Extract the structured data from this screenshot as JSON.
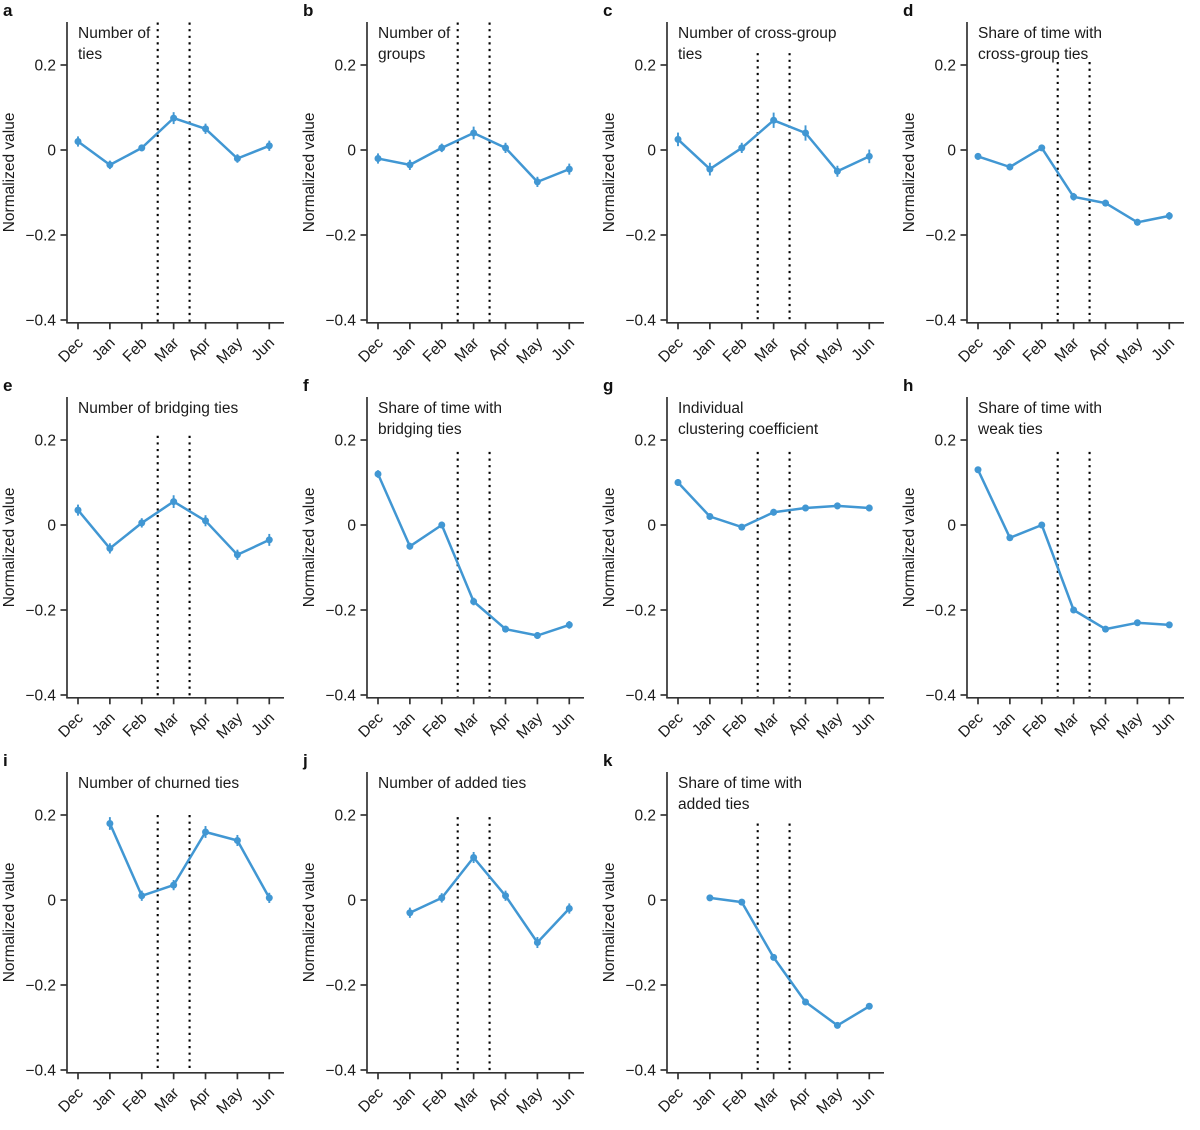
{
  "figure": {
    "ylabel": "Normalized value",
    "categories": [
      "Dec",
      "Jan",
      "Feb",
      "Mar",
      "Apr",
      "May",
      "Jun"
    ],
    "ytick_labels": [
      "0.2",
      "0",
      "−0.2",
      "−0.4"
    ],
    "yticks": [
      0.2,
      0,
      -0.2,
      -0.4
    ],
    "ylim": [
      -0.4,
      0.3
    ],
    "line_color": "#4197d3",
    "axis_color": "#333333",
    "vline_color": "#000000",
    "text_color": "#1a1a1a"
  },
  "chart_data": [
    {
      "type": "line",
      "letter": "a",
      "title": "Number of\nties",
      "categories": [
        "Dec",
        "Jan",
        "Feb",
        "Mar",
        "Apr",
        "May",
        "Jun"
      ],
      "values": [
        0.02,
        -0.035,
        0.005,
        0.075,
        0.05,
        -0.02,
        0.01
      ],
      "errors": [
        0.012,
        0.01,
        0.008,
        0.014,
        0.012,
        0.01,
        0.012
      ],
      "xlabel": "",
      "ylabel": "Normalized value",
      "ylim": [
        -0.4,
        0.3
      ],
      "vlines_x": [
        2.5,
        3.5
      ],
      "vline_top": 0.3
    },
    {
      "type": "line",
      "letter": "b",
      "title": "Number of\ngroups",
      "categories": [
        "Dec",
        "Jan",
        "Feb",
        "Mar",
        "Apr",
        "May",
        "Jun"
      ],
      "values": [
        -0.02,
        -0.035,
        0.005,
        0.04,
        0.005,
        -0.075,
        -0.045
      ],
      "errors": [
        0.012,
        0.012,
        0.01,
        0.015,
        0.012,
        0.012,
        0.013
      ],
      "xlabel": "",
      "ylabel": "Normalized value",
      "ylim": [
        -0.4,
        0.3
      ],
      "vlines_x": [
        2.5,
        3.5
      ],
      "vline_top": 0.3
    },
    {
      "type": "line",
      "letter": "c",
      "title": "Number of cross-group\nties",
      "categories": [
        "Dec",
        "Jan",
        "Feb",
        "Mar",
        "Apr",
        "May",
        "Jun"
      ],
      "values": [
        0.025,
        -0.045,
        0.005,
        0.07,
        0.04,
        -0.05,
        -0.015
      ],
      "errors": [
        0.016,
        0.015,
        0.012,
        0.018,
        0.018,
        0.013,
        0.016
      ],
      "xlabel": "",
      "ylabel": "Normalized value",
      "ylim": [
        -0.4,
        0.3
      ],
      "vlines_x": [
        2.5,
        3.5
      ],
      "vline_top": 0.228
    },
    {
      "type": "line",
      "letter": "d",
      "title": "Share of time with\ncross-group ties",
      "categories": [
        "Dec",
        "Jan",
        "Feb",
        "Mar",
        "Apr",
        "May",
        "Jun"
      ],
      "values": [
        -0.015,
        -0.04,
        0.005,
        -0.11,
        -0.125,
        -0.17,
        -0.155
      ],
      "errors": [
        0.008,
        0.008,
        0.007,
        0.009,
        0.008,
        0.008,
        0.009
      ],
      "xlabel": "",
      "ylabel": "Normalized value",
      "ylim": [
        -0.4,
        0.3
      ],
      "vlines_x": [
        2.5,
        3.5
      ],
      "vline_top": 0.207
    },
    {
      "type": "line",
      "letter": "e",
      "title": "Number of bridging ties",
      "categories": [
        "Dec",
        "Jan",
        "Feb",
        "Mar",
        "Apr",
        "May",
        "Jun"
      ],
      "values": [
        0.035,
        -0.055,
        0.005,
        0.055,
        0.01,
        -0.07,
        -0.035
      ],
      "errors": [
        0.013,
        0.012,
        0.011,
        0.015,
        0.013,
        0.012,
        0.014
      ],
      "xlabel": "",
      "ylabel": "Normalized value",
      "ylim": [
        -0.4,
        0.3
      ],
      "vlines_x": [
        2.5,
        3.5
      ],
      "vline_top": 0.21
    },
    {
      "type": "line",
      "letter": "f",
      "title": "Share of time with\nbridging ties",
      "categories": [
        "Dec",
        "Jan",
        "Feb",
        "Mar",
        "Apr",
        "May",
        "Jun"
      ],
      "values": [
        0.12,
        -0.05,
        0.0,
        -0.18,
        -0.245,
        -0.26,
        -0.235
      ],
      "errors": [
        0.009,
        0.008,
        0.008,
        0.009,
        0.008,
        0.008,
        0.009
      ],
      "xlabel": "",
      "ylabel": "Normalized value",
      "ylim": [
        -0.4,
        0.3
      ],
      "vlines_x": [
        2.5,
        3.5
      ],
      "vline_top": 0.172
    },
    {
      "type": "line",
      "letter": "g",
      "title": "Individual\nclustering coefficient",
      "categories": [
        "Dec",
        "Jan",
        "Feb",
        "Mar",
        "Apr",
        "May",
        "Jun"
      ],
      "values": [
        0.1,
        0.02,
        -0.005,
        0.03,
        0.04,
        0.045,
        0.04
      ],
      "errors": [
        0.008,
        0.007,
        0.007,
        0.008,
        0.008,
        0.008,
        0.008
      ],
      "xlabel": "",
      "ylabel": "Normalized value",
      "ylim": [
        -0.4,
        0.3
      ],
      "vlines_x": [
        2.5,
        3.5
      ],
      "vline_top": 0.172
    },
    {
      "type": "line",
      "letter": "h",
      "title": "Share of time with\nweak ties",
      "categories": [
        "Dec",
        "Jan",
        "Feb",
        "Mar",
        "Apr",
        "May",
        "Jun"
      ],
      "values": [
        0.13,
        -0.03,
        0.0,
        -0.2,
        -0.245,
        -0.23,
        -0.235
      ],
      "errors": [
        0.006,
        0.006,
        0.006,
        0.007,
        0.006,
        0.006,
        0.006
      ],
      "xlabel": "",
      "ylabel": "Normalized value",
      "ylim": [
        -0.4,
        0.3
      ],
      "vlines_x": [
        2.5,
        3.5
      ],
      "vline_top": 0.172
    },
    {
      "type": "line",
      "letter": "i",
      "title": "Number of churned ties",
      "categories": [
        "Dec",
        "Jan",
        "Feb",
        "Mar",
        "Apr",
        "May",
        "Jun"
      ],
      "values": [
        null,
        0.18,
        0.01,
        0.035,
        0.16,
        0.14,
        0.005
      ],
      "errors": [
        null,
        0.015,
        0.012,
        0.012,
        0.014,
        0.013,
        0.012
      ],
      "xlabel": "",
      "ylabel": "Normalized value",
      "ylim": [
        -0.4,
        0.3
      ],
      "vlines_x": [
        2.5,
        3.5
      ],
      "vline_top": 0.2
    },
    {
      "type": "line",
      "letter": "j",
      "title": "Number of added ties",
      "categories": [
        "Dec",
        "Jan",
        "Feb",
        "Mar",
        "Apr",
        "May",
        "Jun"
      ],
      "values": [
        null,
        -0.03,
        0.005,
        0.1,
        0.01,
        -0.1,
        -0.02
      ],
      "errors": [
        null,
        0.012,
        0.011,
        0.013,
        0.012,
        0.013,
        0.012
      ],
      "xlabel": "",
      "ylabel": "Normalized value",
      "ylim": [
        -0.4,
        0.3
      ],
      "vlines_x": [
        2.5,
        3.5
      ],
      "vline_top": 0.195
    },
    {
      "type": "line",
      "letter": "k",
      "title": "Share of time with\nadded ties",
      "categories": [
        "Dec",
        "Jan",
        "Feb",
        "Mar",
        "Apr",
        "May",
        "Jun"
      ],
      "values": [
        null,
        0.005,
        -0.005,
        -0.135,
        -0.24,
        -0.295,
        -0.25
      ],
      "errors": [
        null,
        0.006,
        0.006,
        0.007,
        0.007,
        0.007,
        0.007
      ],
      "xlabel": "",
      "ylabel": "Normalized value",
      "ylim": [
        -0.4,
        0.3
      ],
      "vlines_x": [
        2.5,
        3.5
      ],
      "vline_top": 0.18
    }
  ]
}
